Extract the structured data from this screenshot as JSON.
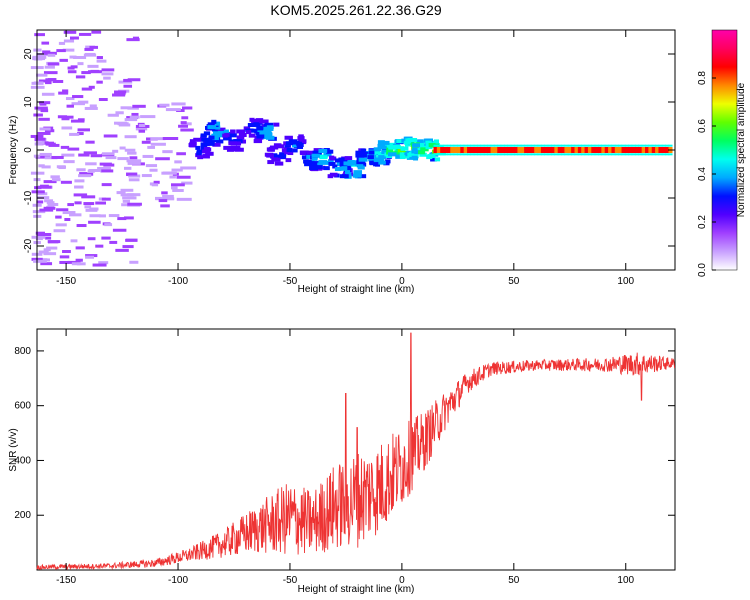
{
  "figure": {
    "title": "KOM5.2025.261.22.36.G29"
  },
  "chart_data": [
    {
      "type": "heatmap",
      "title": "KOM5.2025.261.22.36.G29",
      "xlabel": "Height of straight line (km)",
      "ylabel": "Frequency (Hz)",
      "xlim": [
        -163,
        122
      ],
      "ylim": [
        -25,
        25
      ],
      "xticks": [
        -150,
        -100,
        -50,
        0,
        50,
        100
      ],
      "yticks": [
        -20,
        -10,
        0,
        10,
        20
      ],
      "colorbar": {
        "label": "Normalized spectral amplitude",
        "range": [
          0,
          1
        ],
        "ticks": [
          "0.0",
          "0.2",
          "0.4",
          "0.6",
          "0.8"
        ],
        "colors": [
          "#ffffff",
          "#c8a0ff",
          "#a040ff",
          "#5000ff",
          "#0010ff",
          "#00aaff",
          "#00ffee",
          "#00ff60",
          "#60ff00",
          "#eeff00",
          "#ff8800",
          "#ff0000",
          "#ff0060",
          "#ff00aa"
        ]
      },
      "ridge_description": "Spectral energy concentrated at ~0 Hz for heights above ~0 km; scattered broad energy (±25 Hz) below -120 km; ridge rising from -5 Hz at -25 km to ~3 Hz around -85 km",
      "ridge_points": [
        {
          "x": -90,
          "y": 0.5,
          "a": 0.3
        },
        {
          "x": -85,
          "y": 3,
          "a": 0.35
        },
        {
          "x": -82,
          "y": 4,
          "a": 0.45
        },
        {
          "x": -75,
          "y": 2,
          "a": 0.3
        },
        {
          "x": -65,
          "y": 4.5,
          "a": 0.32
        },
        {
          "x": -60,
          "y": 3.5,
          "a": 0.42
        },
        {
          "x": -55,
          "y": -1,
          "a": 0.3
        },
        {
          "x": -48,
          "y": 1,
          "a": 0.35
        },
        {
          "x": -40,
          "y": -2,
          "a": 0.35
        },
        {
          "x": -35,
          "y": -2,
          "a": 0.45
        },
        {
          "x": -28,
          "y": -3.5,
          "a": 0.38
        },
        {
          "x": -22,
          "y": -4,
          "a": 0.48
        },
        {
          "x": -15,
          "y": -2,
          "a": 0.4
        },
        {
          "x": -10,
          "y": -1,
          "a": 0.45
        },
        {
          "x": -5,
          "y": 0,
          "a": 0.55
        },
        {
          "x": 0,
          "y": 0,
          "a": 0.58
        },
        {
          "x": 5,
          "y": 0.5,
          "a": 0.6
        },
        {
          "x": 10,
          "y": 0,
          "a": 0.55
        },
        {
          "x": 15,
          "y": 0,
          "a": 0.6
        }
      ]
    },
    {
      "type": "line",
      "xlabel": "Height of straight line (km)",
      "ylabel": "SNR (v/v)",
      "xlim": [
        -163,
        122
      ],
      "ylim": [
        0,
        880
      ],
      "xticks": [
        -150,
        -100,
        -50,
        0,
        50,
        100
      ],
      "yticks": [
        200,
        400,
        600,
        800
      ],
      "series": [
        {
          "name": "SNR",
          "color": "#ee3333",
          "envelope": [
            {
              "x": -163,
              "mean": 10,
              "noise": 8
            },
            {
              "x": -130,
              "mean": 15,
              "noise": 10
            },
            {
              "x": -110,
              "mean": 25,
              "noise": 15
            },
            {
              "x": -95,
              "mean": 55,
              "noise": 25
            },
            {
              "x": -80,
              "mean": 95,
              "noise": 50
            },
            {
              "x": -65,
              "mean": 150,
              "noise": 90
            },
            {
              "x": -50,
              "mean": 190,
              "noise": 140
            },
            {
              "x": -40,
              "mean": 170,
              "noise": 120
            },
            {
              "x": -30,
              "mean": 230,
              "noise": 160
            },
            {
              "x": -20,
              "mean": 260,
              "noise": 180
            },
            {
              "x": -10,
              "mean": 300,
              "noise": 170
            },
            {
              "x": 0,
              "mean": 380,
              "noise": 150
            },
            {
              "x": 10,
              "mean": 470,
              "noise": 110
            },
            {
              "x": 20,
              "mean": 590,
              "noise": 70
            },
            {
              "x": 30,
              "mean": 690,
              "noise": 40
            },
            {
              "x": 40,
              "mean": 735,
              "noise": 25
            },
            {
              "x": 60,
              "mean": 748,
              "noise": 20
            },
            {
              "x": 90,
              "mean": 750,
              "noise": 25
            },
            {
              "x": 105,
              "mean": 752,
              "noise": 45
            },
            {
              "x": 122,
              "mean": 755,
              "noise": 18
            }
          ],
          "peaks": [
            {
              "x": -25,
              "y": 645
            },
            {
              "x": -20,
              "y": 520
            },
            {
              "x": 4,
              "y": 865
            },
            {
              "x": 107,
              "y": 875
            },
            {
              "x": 107,
              "y": 620
            }
          ]
        }
      ]
    }
  ]
}
